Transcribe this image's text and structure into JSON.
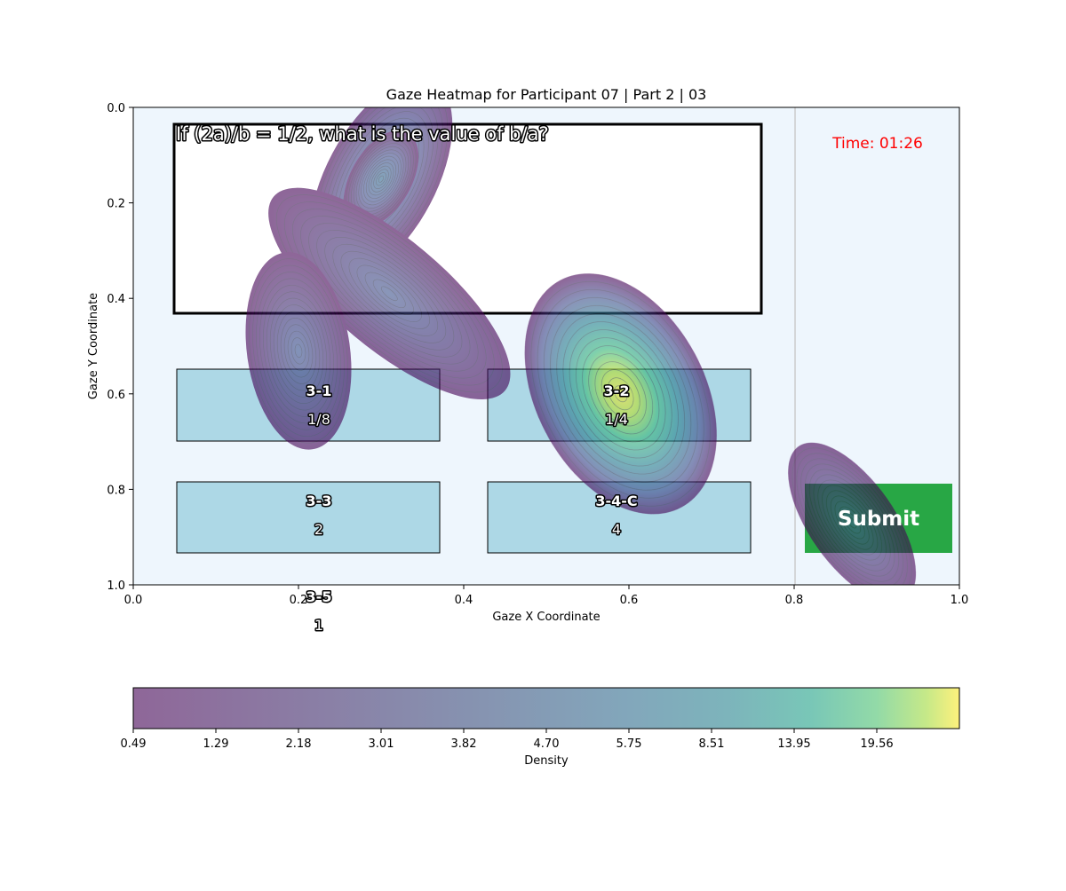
{
  "title": "Gaze Heatmap for Participant 07 | Part 2 | 03",
  "question": "If (2a)/b = 1/2, what is the value of b/a?",
  "timer": "Time: 01:26",
  "submit_label": "Submit",
  "chart_data": {
    "type": "heatmap",
    "title": "Gaze Heatmap for Participant 07 | Part 2 | 03",
    "xlabel": "Gaze X Coordinate",
    "ylabel": "Gaze Y Coordinate",
    "xlim": [
      0.0,
      1.0
    ],
    "ylim": [
      1.0,
      0.0
    ],
    "y_axis_inverted": true,
    "x_ticks": [
      "0.0",
      "0.2",
      "0.4",
      "0.6",
      "0.8",
      "1.0"
    ],
    "y_ticks": [
      "0.0",
      "0.2",
      "0.4",
      "0.6",
      "0.8",
      "1.0"
    ],
    "grid": false,
    "colormap": "viridis",
    "colorbar": {
      "label": "Density",
      "position": "bottom",
      "tick_labels": [
        "0.49",
        "1.29",
        "2.18",
        "3.01",
        "3.82",
        "4.70",
        "5.75",
        "8.51",
        "13.95",
        "19.56"
      ]
    },
    "density_peaks": [
      {
        "x": 0.3,
        "y": 0.15
      },
      {
        "x": 0.31,
        "y": 0.39
      },
      {
        "x": 0.2,
        "y": 0.51
      },
      {
        "x": 0.59,
        "y": 0.6
      },
      {
        "x": 0.87,
        "y": 0.87
      }
    ],
    "answer_boxes": [
      {
        "id": "3-1",
        "answer": "1/8"
      },
      {
        "id": "3-2",
        "answer": "1/4"
      },
      {
        "id": "3-3",
        "answer": "2"
      },
      {
        "id": "3-4-C",
        "answer": "4"
      },
      {
        "id": "3-5",
        "answer": "1"
      }
    ],
    "colors": {
      "background": "#eef6fd",
      "answer_box": "#add8e6",
      "submit": "#28a745",
      "timer": "#ff0000"
    }
  }
}
